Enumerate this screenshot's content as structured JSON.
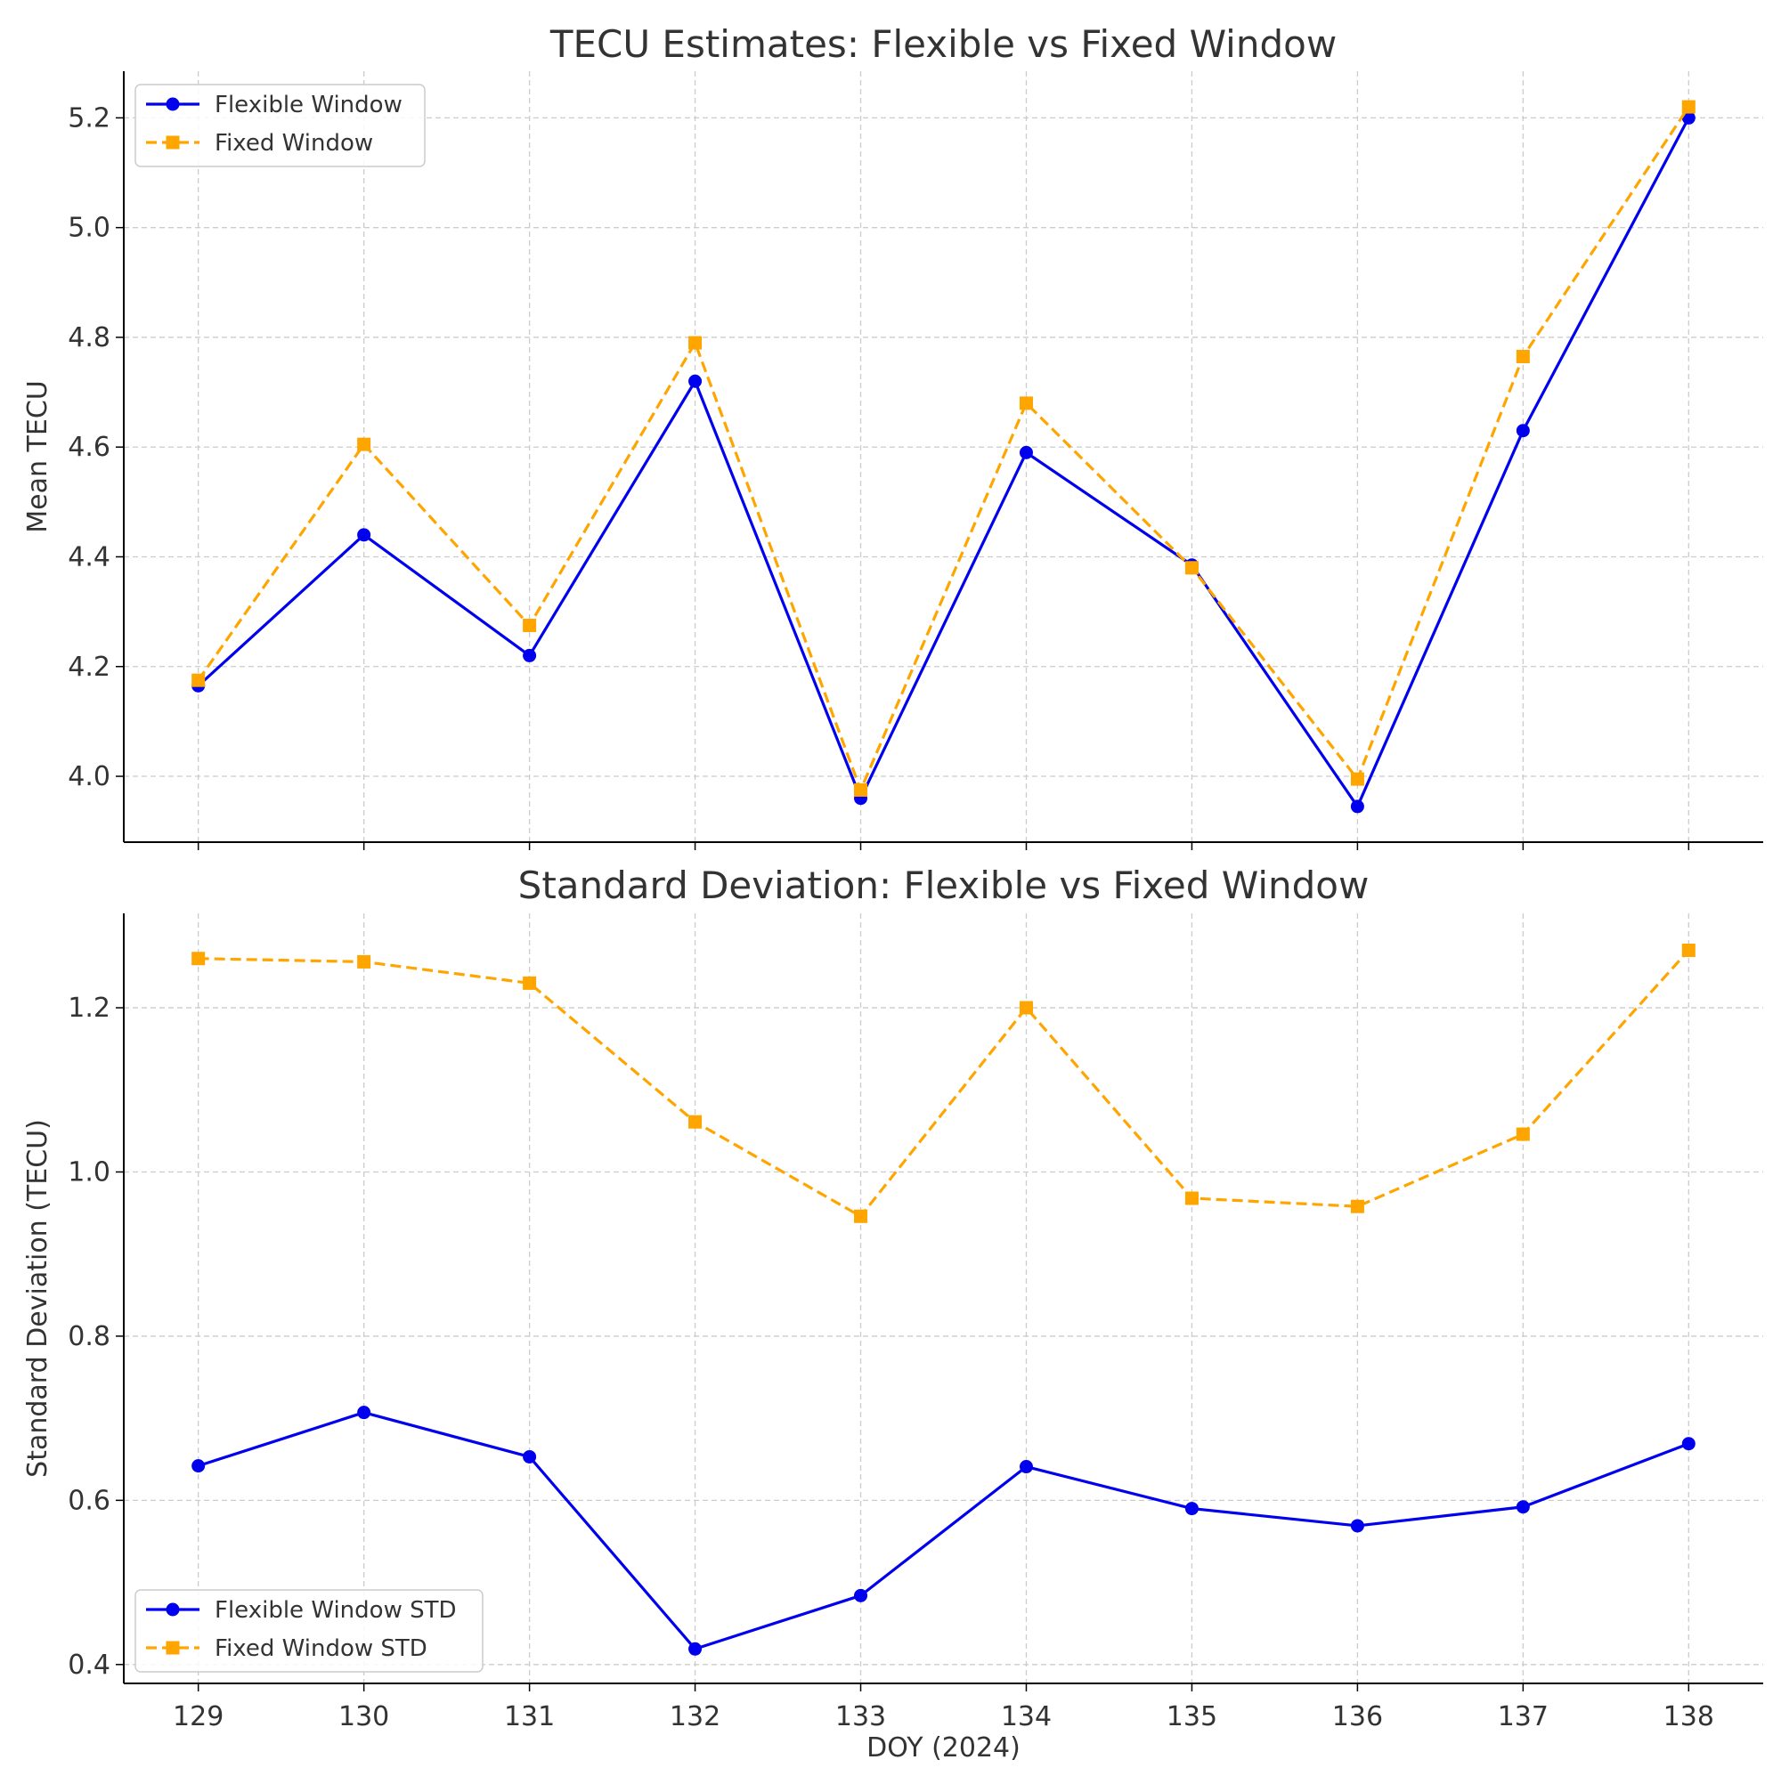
{
  "colors": {
    "flexible": "#0000ee",
    "fixed": "#ffa500",
    "grid": "#cccccc",
    "axis": "#000000",
    "text": "#333333"
  },
  "chart_data": [
    {
      "type": "line",
      "title": "TECU Estimates: Flexible vs Fixed Window",
      "xlabel": "",
      "ylabel": "Mean TECU",
      "x": [
        129,
        130,
        131,
        132,
        133,
        134,
        135,
        136,
        137,
        138
      ],
      "xlim": [
        128.55,
        138.45
      ],
      "ylim": [
        3.88,
        5.285
      ],
      "yticks": [
        "4.0",
        "4.2",
        "4.4",
        "4.6",
        "4.8",
        "5.0",
        "5.2"
      ],
      "grid": true,
      "legend_position": "top-left",
      "series": [
        {
          "name": "Flexible Window",
          "color": "flexible",
          "marker": "circle",
          "linestyle": "solid",
          "values": [
            4.165,
            4.44,
            4.22,
            4.72,
            3.96,
            4.59,
            4.385,
            3.945,
            4.63,
            5.2
          ]
        },
        {
          "name": "Fixed Window",
          "color": "fixed",
          "marker": "square",
          "linestyle": "dashed",
          "values": [
            4.175,
            4.605,
            4.275,
            4.79,
            3.975,
            4.68,
            4.38,
            3.995,
            4.765,
            5.22
          ]
        }
      ]
    },
    {
      "type": "line",
      "title": "Standard Deviation: Flexible vs Fixed Window",
      "xlabel": "DOY (2024)",
      "ylabel": "Standard Deviation (TECU)",
      "x": [
        129,
        130,
        131,
        132,
        133,
        134,
        135,
        136,
        137,
        138
      ],
      "xticks": [
        "129",
        "130",
        "131",
        "132",
        "133",
        "134",
        "135",
        "136",
        "137",
        "138"
      ],
      "xlim": [
        128.55,
        138.45
      ],
      "ylim": [
        0.377,
        1.315
      ],
      "yticks": [
        "0.4",
        "0.6",
        "0.8",
        "1.0",
        "1.2"
      ],
      "grid": true,
      "legend_position": "bottom-left",
      "series": [
        {
          "name": "Flexible Window STD",
          "color": "flexible",
          "marker": "circle",
          "linestyle": "solid",
          "values": [
            0.642,
            0.707,
            0.653,
            0.419,
            0.484,
            0.641,
            0.59,
            0.569,
            0.592,
            0.669
          ]
        },
        {
          "name": "Fixed Window STD",
          "color": "fixed",
          "marker": "square",
          "linestyle": "dashed",
          "values": [
            1.26,
            1.256,
            1.23,
            1.061,
            0.946,
            1.2,
            0.968,
            0.958,
            1.046,
            1.27
          ]
        }
      ]
    }
  ]
}
